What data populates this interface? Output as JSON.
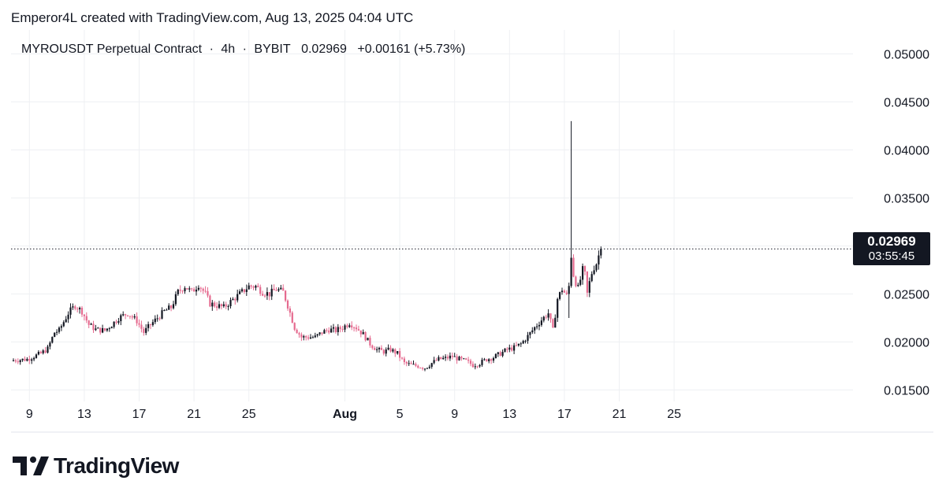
{
  "header": {
    "text": "Emperor4L created with TradingView.com, Aug 13, 2025 04:04 UTC"
  },
  "legend": {
    "symbol": "MYROUSDT Perpetual Contract",
    "separator1": "·",
    "interval": "4h",
    "separator2": "·",
    "exchange": "BYBIT",
    "price": "0.02969",
    "change": "+0.00161 (+5.73%)"
  },
  "badge": {
    "price": "0.02969",
    "countdown": "03:55:45"
  },
  "logo": {
    "text": "TradingView",
    "icon": "tradingview-logo-icon"
  },
  "colors": {
    "up": "#131722",
    "down": "#e56a8f",
    "grid": "#eef0f3",
    "text": "#131722"
  },
  "chart_data": {
    "type": "candlestick",
    "title": "MYROUSDT Perpetual Contract · 4h · BYBIT",
    "ylim": [
      0.0125,
      0.0525
    ],
    "y_ticks": [
      "0.05000",
      "0.04500",
      "0.04000",
      "0.03500",
      "0.02500",
      "0.02000",
      "0.01500"
    ],
    "y_tick_values": [
      0.05,
      0.045,
      0.04,
      0.035,
      0.025,
      0.02,
      0.015
    ],
    "x_start": "2025-07-07 20:00",
    "interval_hours": 4,
    "x_ticks": [
      {
        "label": "9",
        "date": "2025-07-09",
        "bold": false
      },
      {
        "label": "13",
        "date": "2025-07-13",
        "bold": false
      },
      {
        "label": "17",
        "date": "2025-07-17",
        "bold": false
      },
      {
        "label": "21",
        "date": "2025-07-21",
        "bold": false
      },
      {
        "label": "25",
        "date": "2025-07-25",
        "bold": false
      },
      {
        "label": "Aug",
        "date": "2025-08-01",
        "bold": true
      },
      {
        "label": "5",
        "date": "2025-08-05",
        "bold": false
      },
      {
        "label": "9",
        "date": "2025-08-09",
        "bold": false
      },
      {
        "label": "13",
        "date": "2025-08-13",
        "bold": false
      },
      {
        "label": "17",
        "date": "2025-08-17",
        "bold": false
      },
      {
        "label": "21",
        "date": "2025-08-21",
        "bold": false
      },
      {
        "label": "25",
        "date": "2025-08-25",
        "bold": false
      }
    ],
    "last_price": 0.02969,
    "close_path": [
      [
        0,
        0.0181
      ],
      [
        6,
        0.0182
      ],
      [
        8,
        0.0184
      ],
      [
        12,
        0.0188
      ],
      [
        15,
        0.0193
      ],
      [
        18,
        0.021
      ],
      [
        20,
        0.0212
      ],
      [
        24,
        0.023
      ],
      [
        27,
        0.0238
      ],
      [
        30,
        0.0232
      ],
      [
        33,
        0.0218
      ],
      [
        36,
        0.0213
      ],
      [
        40,
        0.0212
      ],
      [
        43,
        0.0218
      ],
      [
        46,
        0.0225
      ],
      [
        50,
        0.023
      ],
      [
        54,
        0.0222
      ],
      [
        57,
        0.021
      ],
      [
        60,
        0.0218
      ],
      [
        63,
        0.0225
      ],
      [
        66,
        0.0232
      ],
      [
        69,
        0.0236
      ],
      [
        72,
        0.0252
      ],
      [
        75,
        0.0258
      ],
      [
        78,
        0.0252
      ],
      [
        81,
        0.026
      ],
      [
        84,
        0.025
      ],
      [
        86,
        0.024
      ],
      [
        89,
        0.0238
      ],
      [
        92,
        0.0236
      ],
      [
        96,
        0.0244
      ],
      [
        100,
        0.0252
      ],
      [
        103,
        0.0258
      ],
      [
        106,
        0.0258
      ],
      [
        109,
        0.0252
      ],
      [
        112,
        0.025
      ],
      [
        115,
        0.0255
      ],
      [
        118,
        0.0252
      ],
      [
        120,
        0.0238
      ],
      [
        123,
        0.0215
      ],
      [
        126,
        0.0205
      ],
      [
        129,
        0.0205
      ],
      [
        132,
        0.0205
      ],
      [
        135,
        0.021
      ],
      [
        138,
        0.0213
      ],
      [
        141,
        0.0212
      ],
      [
        144,
        0.0215
      ],
      [
        147,
        0.022
      ],
      [
        150,
        0.0215
      ],
      [
        153,
        0.0208
      ],
      [
        156,
        0.0198
      ],
      [
        159,
        0.0192
      ],
      [
        162,
        0.019
      ],
      [
        165,
        0.0192
      ],
      [
        168,
        0.0188
      ],
      [
        171,
        0.0178
      ],
      [
        174,
        0.0176
      ],
      [
        177,
        0.0175
      ],
      [
        180,
        0.0173
      ],
      [
        183,
        0.0178
      ],
      [
        186,
        0.0182
      ],
      [
        189,
        0.0183
      ],
      [
        192,
        0.0185
      ],
      [
        195,
        0.0182
      ],
      [
        198,
        0.018
      ],
      [
        201,
        0.0176
      ],
      [
        204,
        0.0178
      ],
      [
        207,
        0.0182
      ],
      [
        210,
        0.0184
      ],
      [
        213,
        0.0188
      ],
      [
        216,
        0.0192
      ],
      [
        219,
        0.0194
      ],
      [
        222,
        0.0198
      ],
      [
        225,
        0.0206
      ],
      [
        228,
        0.0215
      ],
      [
        231,
        0.0223
      ],
      [
        234,
        0.023
      ],
      [
        236,
        0.0212
      ],
      [
        238,
        0.0245
      ],
      [
        240,
        0.0255
      ],
      [
        242,
        0.0248
      ],
      [
        243,
        0.0258
      ],
      [
        244,
        0.029
      ],
      [
        245,
        0.027
      ],
      [
        246,
        0.0262
      ],
      [
        247,
        0.0256
      ],
      [
        248,
        0.0265
      ],
      [
        249,
        0.0275
      ],
      [
        250,
        0.027
      ],
      [
        251,
        0.025
      ],
      [
        252,
        0.0262
      ],
      [
        253,
        0.0272
      ],
      [
        254,
        0.0278
      ],
      [
        255,
        0.0282
      ],
      [
        256,
        0.029
      ],
      [
        257,
        0.0297
      ]
    ],
    "spike": {
      "bar": 244,
      "high": 0.043
    }
  }
}
